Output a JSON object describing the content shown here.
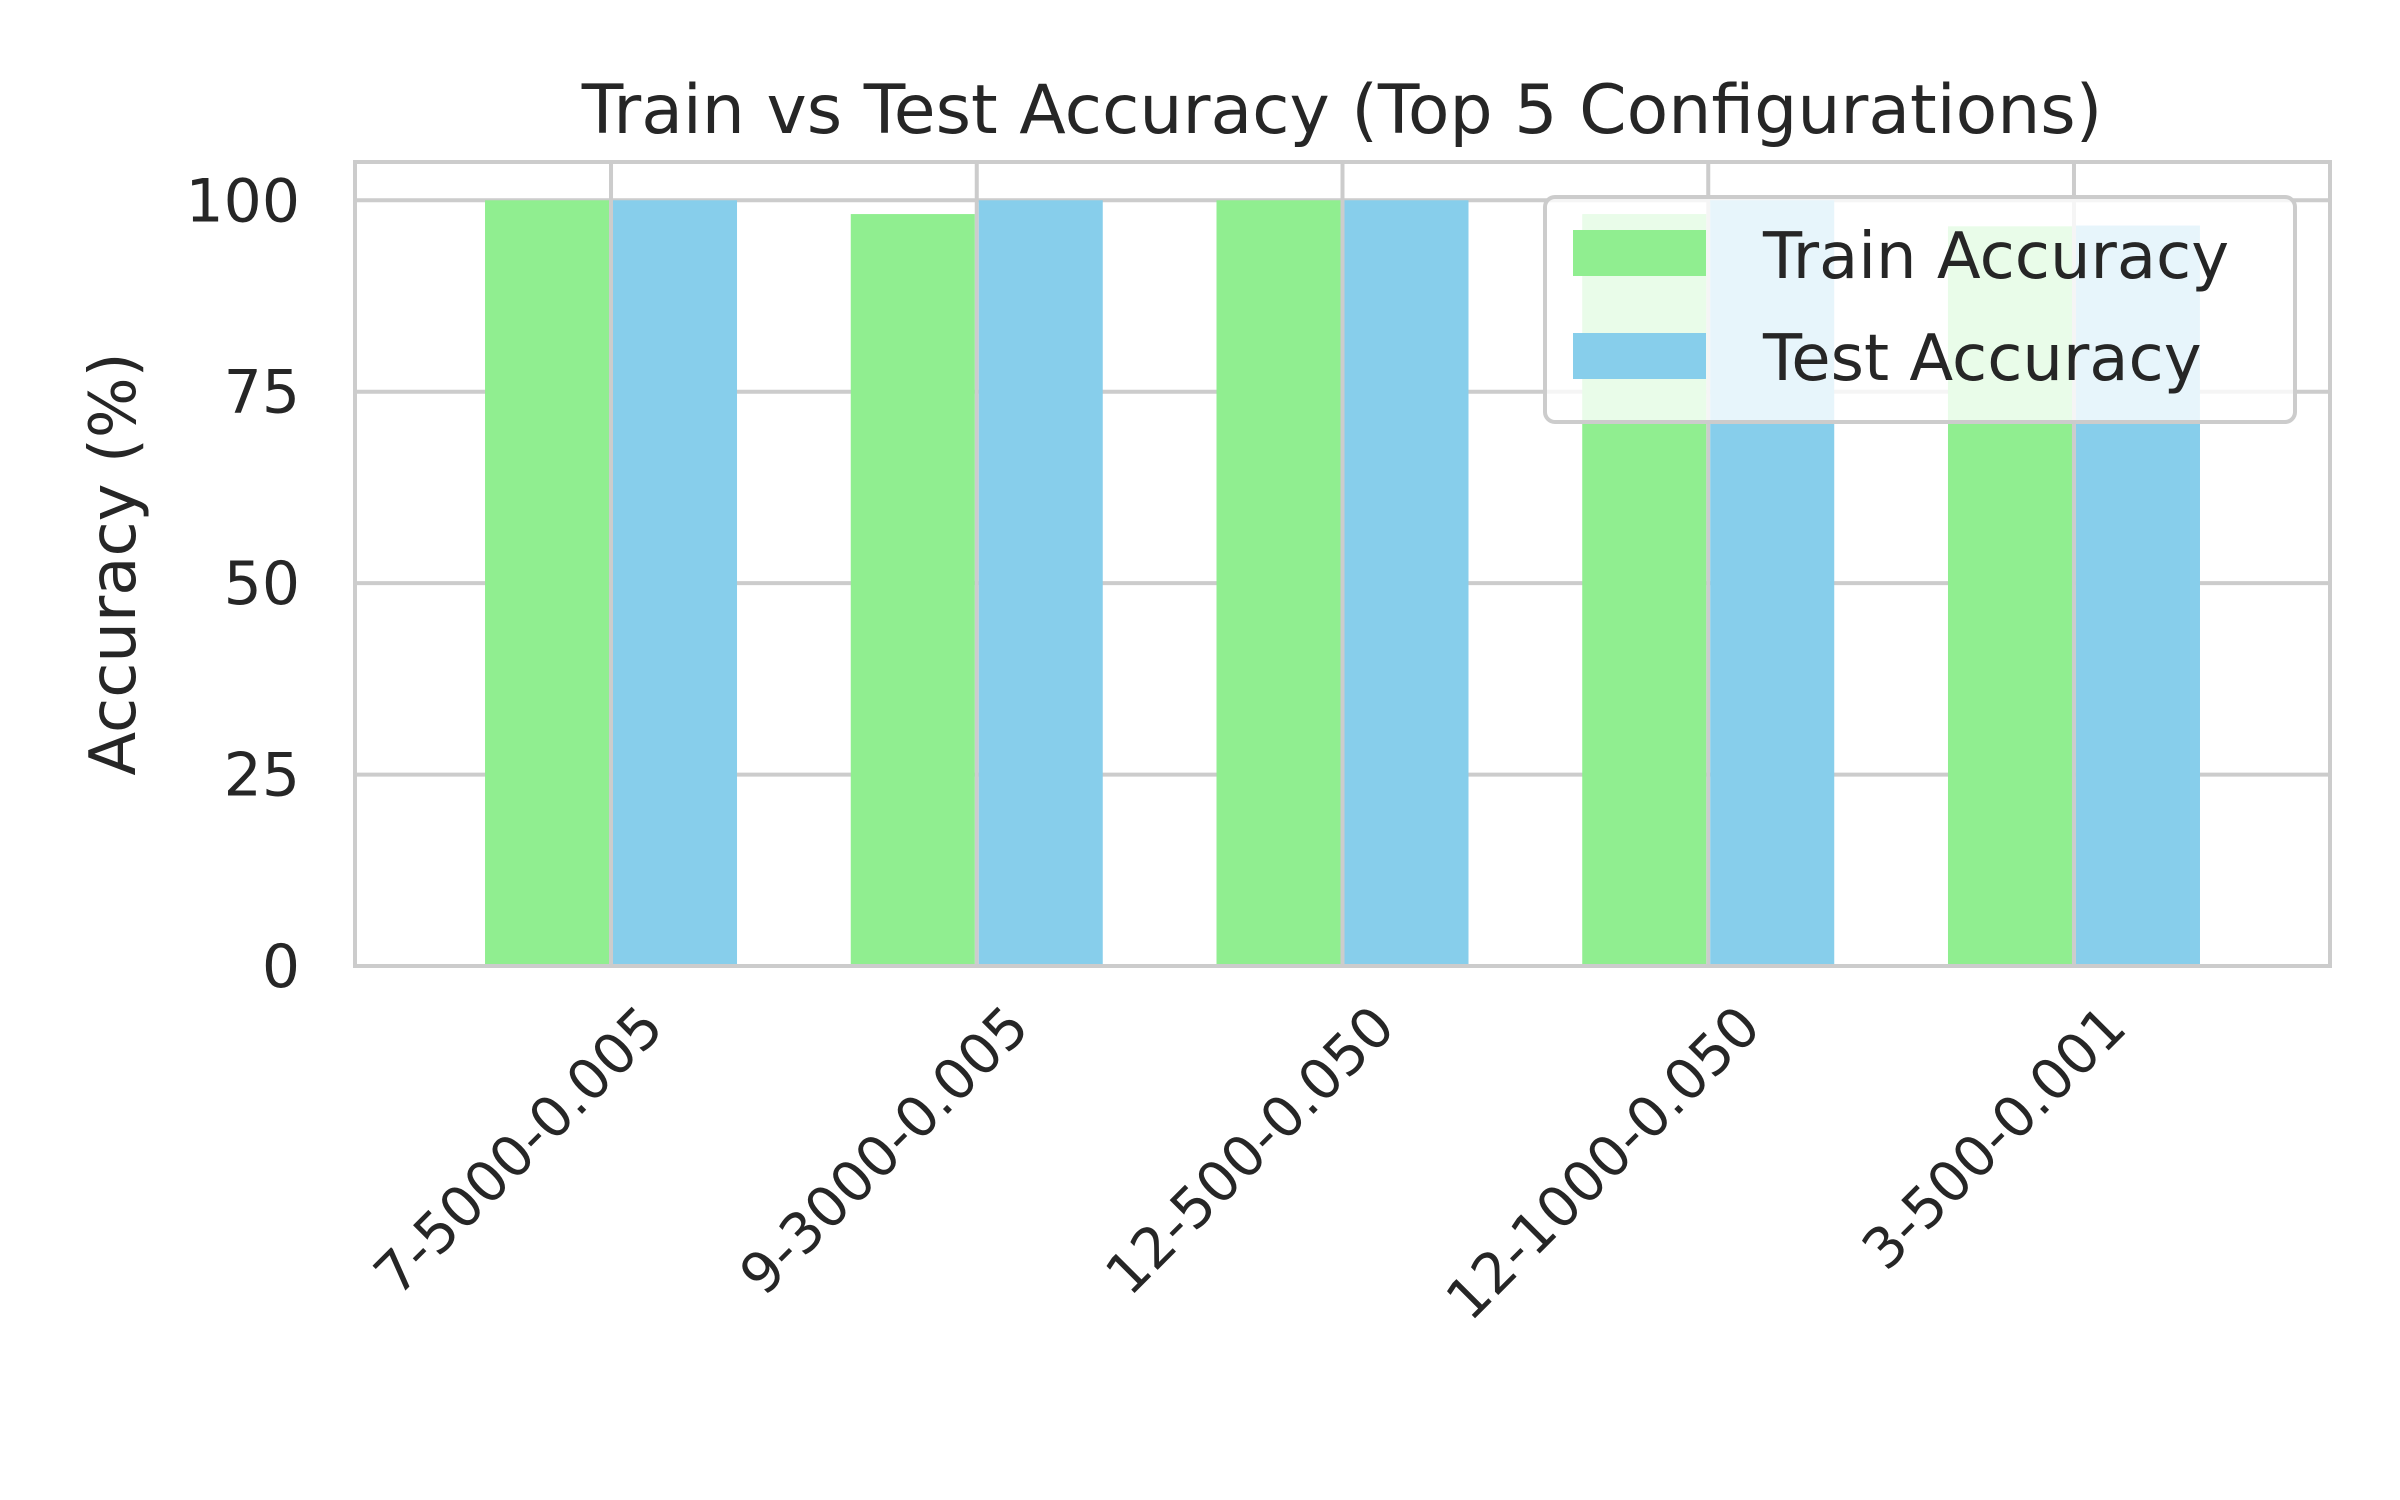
{
  "chart_data": {
    "type": "bar",
    "title": "Train vs Test Accuracy (Top 5 Configurations)",
    "xlabel": "",
    "ylabel": "Accuracy (%)",
    "categories": [
      "7-5000-0.005",
      "9-3000-0.005",
      "12-500-0.050",
      "12-1000-0.050",
      "3-500-0.001"
    ],
    "series": [
      {
        "name": "Train Accuracy",
        "color": "#90ee90",
        "values": [
          100,
          98.2,
          100,
          98.2,
          96.6
        ]
      },
      {
        "name": "Test Accuracy",
        "color": "#87ceeb",
        "values": [
          100,
          100,
          100,
          100,
          96.7
        ]
      }
    ],
    "ylim": [
      0,
      105
    ],
    "yticks": [
      0,
      25,
      50,
      75,
      100
    ],
    "grid": true,
    "legend_position": "top-right"
  }
}
